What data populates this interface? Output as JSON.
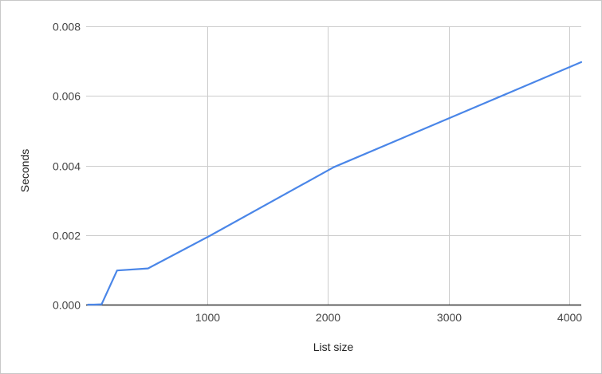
{
  "chart_data": {
    "type": "line",
    "title": "",
    "xlabel": "List size",
    "ylabel": "Seconds",
    "xlim": [
      0,
      4096
    ],
    "ylim": [
      0,
      0.008
    ],
    "x_ticks": [
      1000,
      2000,
      3000,
      4000
    ],
    "y_ticks": [
      0,
      0.002,
      0.004,
      0.006,
      0.008
    ],
    "x_tick_labels": [
      "1000",
      "2000",
      "3000",
      "4000"
    ],
    "y_tick_labels": [
      "0.000",
      "0.002",
      "0.004",
      "0.006",
      "0.008"
    ],
    "grid": true,
    "legend": "none",
    "series": [
      {
        "color": "#4a86e8",
        "x": [
          16,
          64,
          128,
          256,
          512,
          1024,
          2048,
          4096
        ],
        "y": [
          0.0,
          0.0,
          1e-05,
          0.00098,
          0.00104,
          0.00198,
          0.00395,
          0.00697
        ]
      }
    ]
  }
}
